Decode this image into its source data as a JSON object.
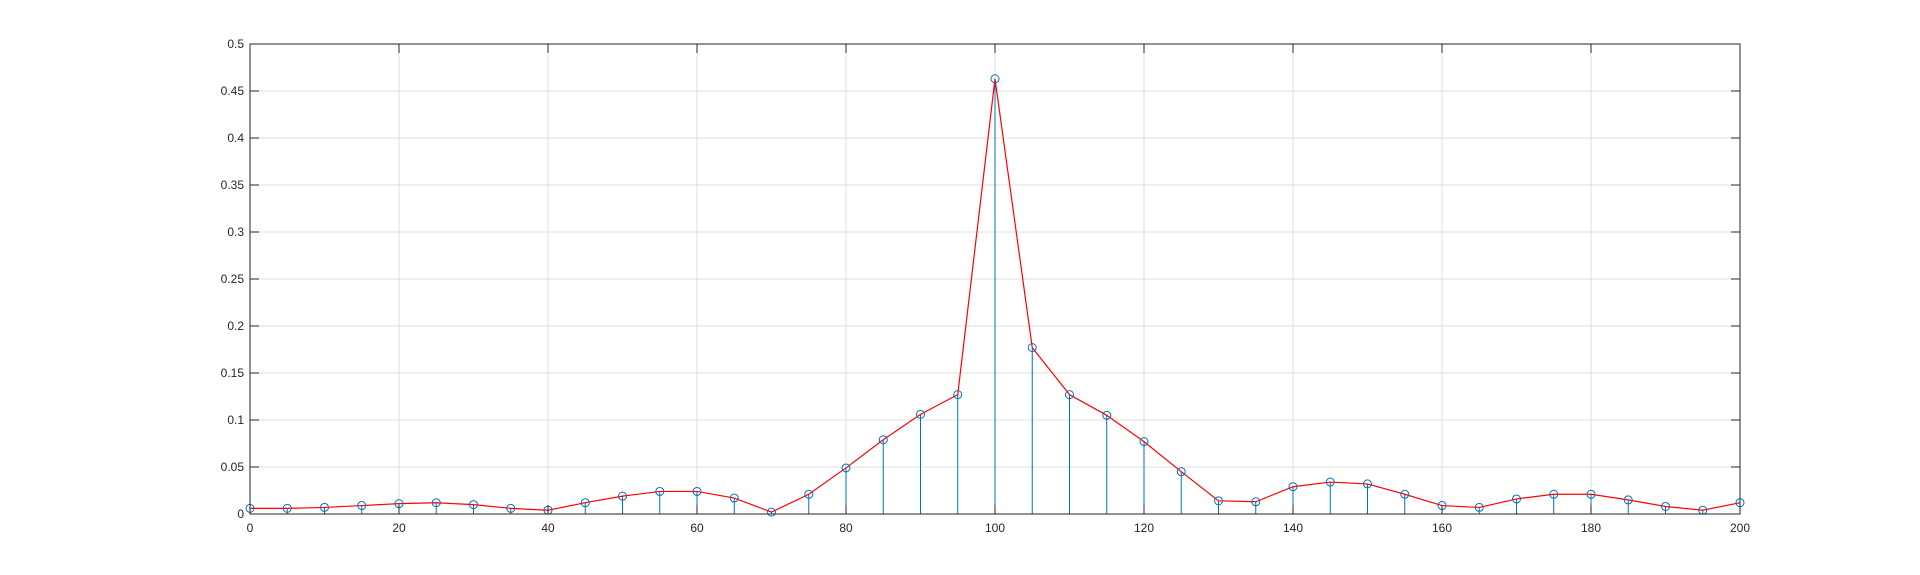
{
  "chart_data": {
    "type": "stem",
    "title": "",
    "xlabel": "",
    "ylabel": "",
    "xlim": [
      0,
      200
    ],
    "ylim": [
      0,
      0.5
    ],
    "grid": true,
    "legend": "none",
    "x_ticks": [
      0,
      20,
      40,
      60,
      80,
      100,
      120,
      140,
      160,
      180,
      200
    ],
    "y_ticks": [
      0,
      0.05,
      0.1,
      0.15,
      0.2,
      0.25,
      0.3,
      0.35,
      0.4,
      0.45,
      0.5
    ],
    "x_tick_labels": [
      "0",
      "20",
      "40",
      "60",
      "80",
      "100",
      "120",
      "140",
      "160",
      "180",
      "200"
    ],
    "y_tick_labels": [
      "0",
      "0.05",
      "0.1",
      "0.15",
      "0.2",
      "0.25",
      "0.3",
      "0.35",
      "0.4",
      "0.45",
      "0.5"
    ],
    "x": [
      0,
      5,
      10,
      15,
      20,
      25,
      30,
      35,
      40,
      45,
      50,
      55,
      60,
      65,
      70,
      75,
      80,
      85,
      90,
      95,
      100,
      105,
      110,
      115,
      120,
      125,
      130,
      135,
      140,
      145,
      150,
      155,
      160,
      165,
      170,
      175,
      180,
      185,
      190,
      195,
      200
    ],
    "series": [
      {
        "values": [
          0.006,
          0.006,
          0.007,
          0.009,
          0.011,
          0.012,
          0.01,
          0.006,
          0.004,
          0.012,
          0.019,
          0.024,
          0.024,
          0.017,
          0.002,
          0.021,
          0.049,
          0.079,
          0.106,
          0.127,
          0.463,
          0.177,
          0.127,
          0.105,
          0.077,
          0.045,
          0.014,
          0.013,
          0.029,
          0.034,
          0.032,
          0.021,
          0.009,
          0.007,
          0.016,
          0.021,
          0.021,
          0.015,
          0.008,
          0.004,
          0.012
        ],
        "stem_color": "#0072BD",
        "marker_color": "#0072BD",
        "line_color": "#FF0000"
      }
    ],
    "colors": {
      "axis": "#262626",
      "grid": "#DFDFDF",
      "background": "#FFFFFF"
    }
  }
}
